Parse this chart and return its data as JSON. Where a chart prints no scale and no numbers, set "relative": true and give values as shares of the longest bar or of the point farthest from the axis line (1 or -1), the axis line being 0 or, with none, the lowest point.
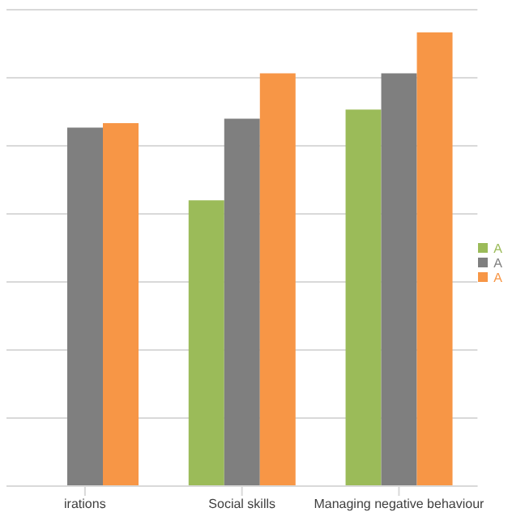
{
  "chart_data": {
    "type": "bar",
    "relative": true,
    "categories": [
      "irations",
      "Social skills",
      "Managing negative behaviour"
    ],
    "series": [
      {
        "name": "A",
        "color": "#9bbb59",
        "values": [
          null,
          0.63,
          0.83
        ]
      },
      {
        "name": "A",
        "color": "#7f7f7f",
        "values": [
          0.79,
          0.81,
          0.91
        ]
      },
      {
        "name": "A",
        "color": "#f79646",
        "values": [
          0.8,
          0.91,
          1
        ]
      }
    ],
    "grid": "y",
    "legend": "right"
  }
}
